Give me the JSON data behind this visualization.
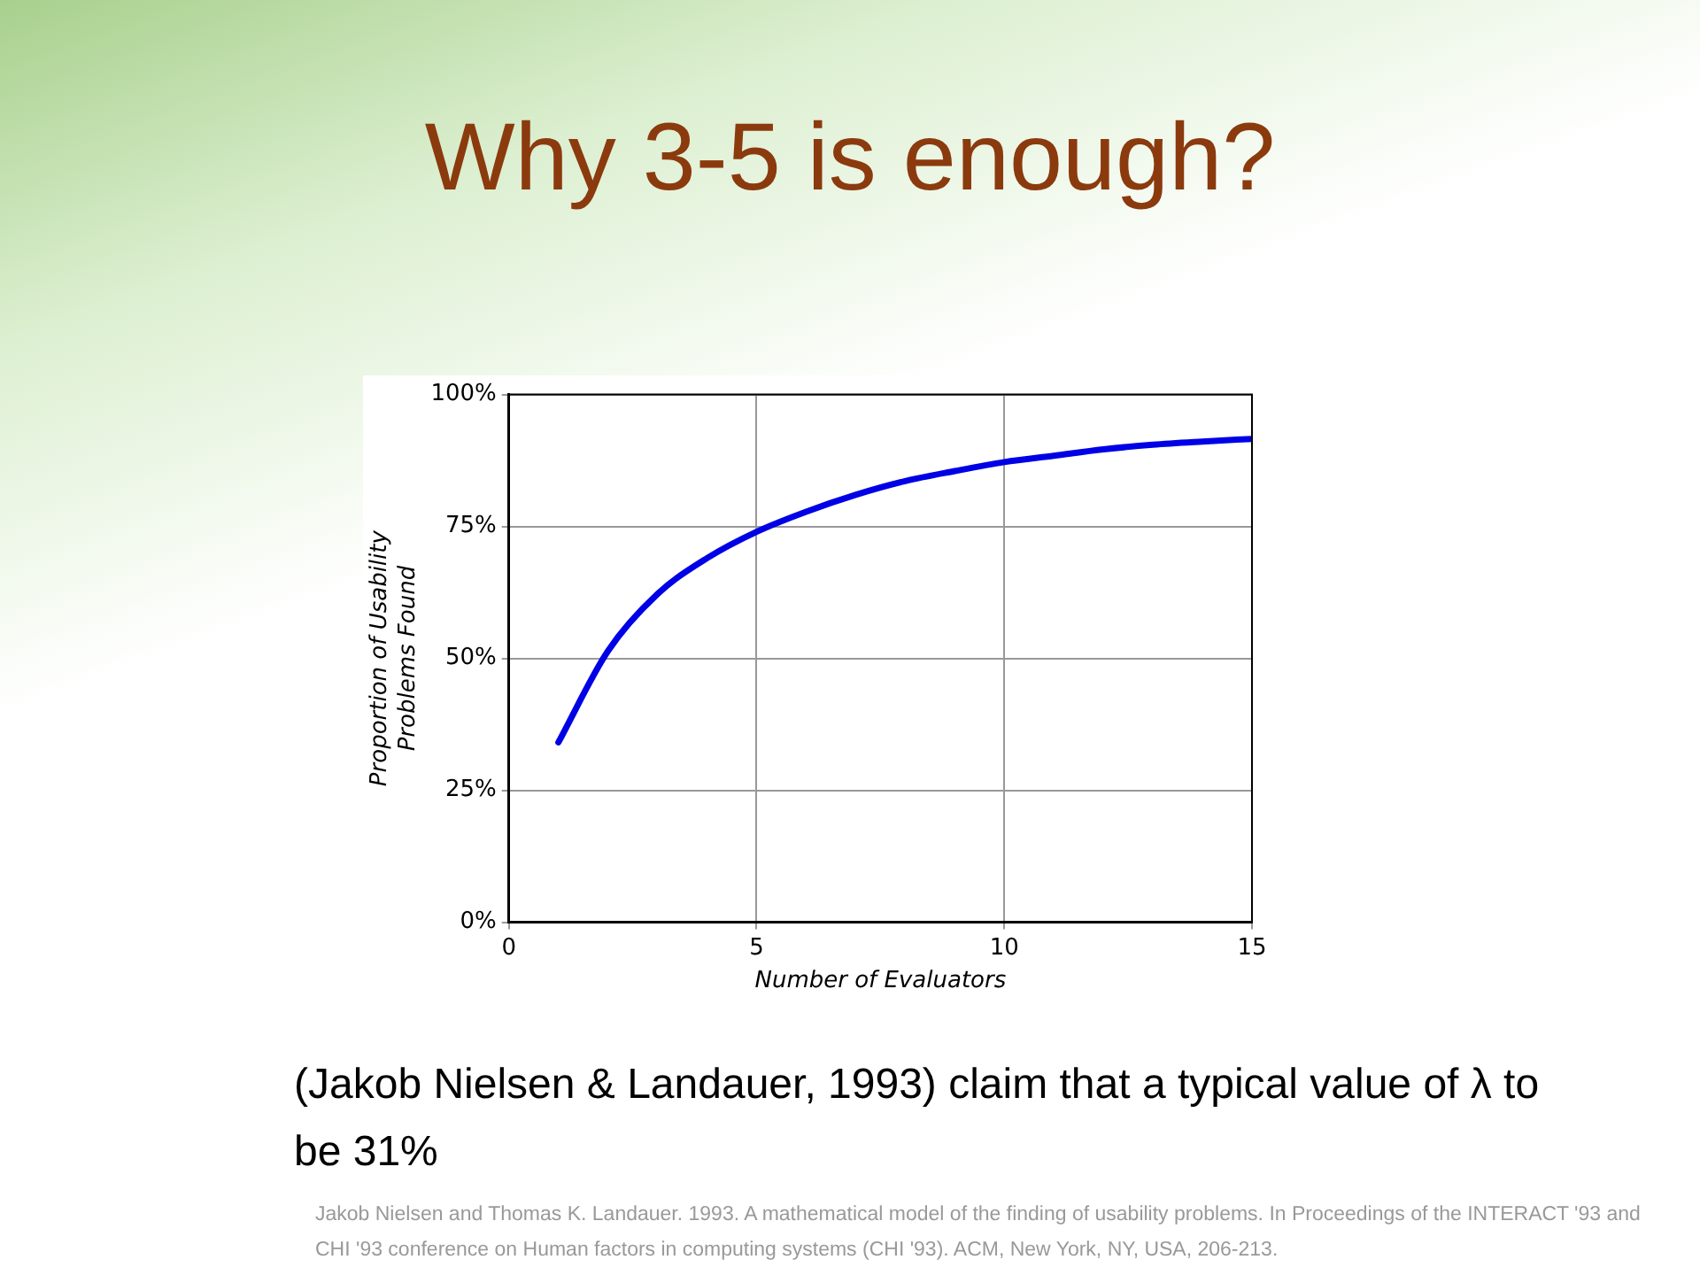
{
  "chart_data": {
    "type": "line",
    "title": "Why 3-5 is enough?",
    "xlabel": "Number of Evaluators",
    "ylabel": "Proportion of Usability\nProblems Found",
    "x": [
      1,
      2,
      3,
      4,
      5,
      6,
      7,
      8,
      9,
      10,
      11,
      12,
      13,
      14,
      15
    ],
    "series": [
      {
        "color": "#0000e6",
        "values": [
          34.1,
          51.4,
          62.2,
          69,
          74,
          77.8,
          81,
          83.6,
          85.5,
          87.2,
          88.4,
          89.6,
          90.5,
          91.1,
          91.6
        ]
      }
    ],
    "xlim": [
      0,
      15
    ],
    "xticks": [
      0,
      5,
      10,
      15
    ],
    "ylim": [
      0,
      100
    ],
    "yticks": [
      {
        "value": 0,
        "label": "0%"
      },
      {
        "value": 25,
        "label": "25%"
      },
      {
        "value": 50,
        "label": "50%"
      },
      {
        "value": 75,
        "label": "75%"
      },
      {
        "value": 100,
        "label": "100%"
      }
    ],
    "grid": true,
    "legend": false,
    "marker": "none",
    "line_style": "solid",
    "annotations": [
      "(Jakob Nielsen & Landauer, 1993) claim that a typical value of λ to be 31%",
      "Jakob Nielsen and Thomas K. Landauer.  1993. A mathematical model of the finding of usability problems. In Proceedings of the INTERACT '93 and CHI '93 conference on Human factors in computing systems (CHI '93). ACM, New York, NY, USA, 206-213."
    ]
  }
}
